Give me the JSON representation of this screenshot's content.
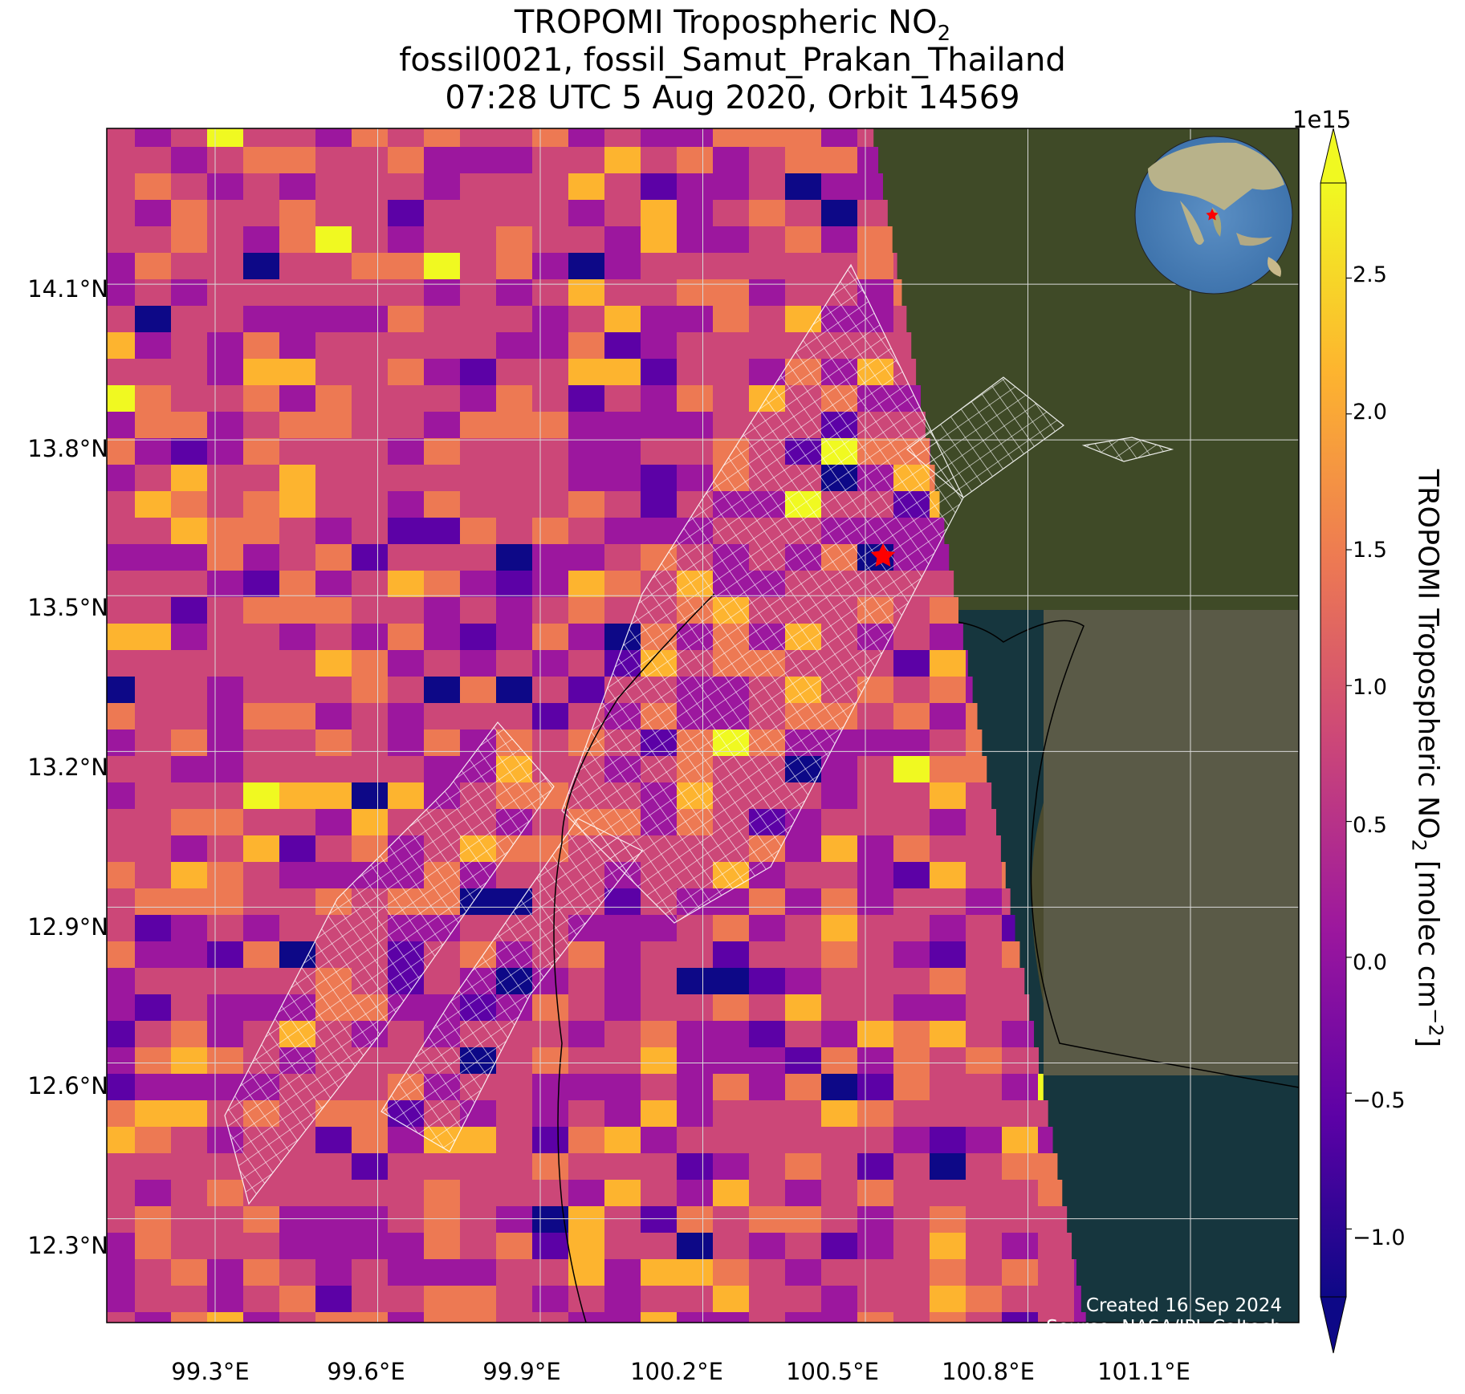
{
  "title": {
    "line1": "TROPOMI Tropospheric NO",
    "line1_sub": "2",
    "line2": "fossil0021, fossil_Samut_Prakan_Thailand",
    "line3": "07:28 UTC 5 Aug 2020, Orbit 14569"
  },
  "axes": {
    "lat_labels": [
      "14.1°N",
      "13.8°N",
      "13.5°N",
      "13.2°N",
      "12.9°N",
      "12.6°N",
      "12.3°N"
    ],
    "lon_labels": [
      "99.3°E",
      "99.6°E",
      "99.9°E",
      "100.2°E",
      "100.5°E",
      "100.8°E",
      "101.1°E"
    ]
  },
  "colorbar": {
    "exponent": "1e15",
    "label_main": "TROPOMI Tropospheric NO",
    "label_sub": "2",
    "label_tail": " [molec cm",
    "label_sup": "−2",
    "label_end": "]",
    "ticks": [
      "2.5",
      "2.0",
      "1.5",
      "1.0",
      "0.5",
      "0.0",
      "−0.5",
      "−1.0"
    ],
    "colors": [
      "#0d0887",
      "#5c01a6",
      "#9c179e",
      "#cc4778",
      "#ed7953",
      "#fdb42f",
      "#f0f921"
    ]
  },
  "credit": {
    "line1": "Created 16 Sep 2024",
    "line2": "Source: NASA/JPL-Caltech"
  },
  "map": {
    "site_marker": "red-star",
    "inset": "globe-locator"
  },
  "chart_data": {
    "type": "heatmap",
    "variable": "TROPOMI Tropospheric NO2",
    "units": "molec cm-2",
    "scale": "1e15",
    "colorbar_range": [
      -1.25,
      2.85
    ],
    "colorbar_ticks": [
      -1.0,
      -0.5,
      0.0,
      0.5,
      1.0,
      1.5,
      2.0,
      2.5
    ],
    "lon_range": [
      99.1,
      101.3
    ],
    "lat_range": [
      12.1,
      14.4
    ],
    "lat_ticks": [
      14.1,
      13.8,
      13.5,
      13.2,
      12.9,
      12.6,
      12.3
    ],
    "lon_ticks": [
      99.3,
      99.6,
      99.9,
      100.2,
      100.5,
      100.8,
      101.1
    ],
    "site": {
      "lon": 100.6,
      "lat": 13.6
    },
    "grid": true
  }
}
